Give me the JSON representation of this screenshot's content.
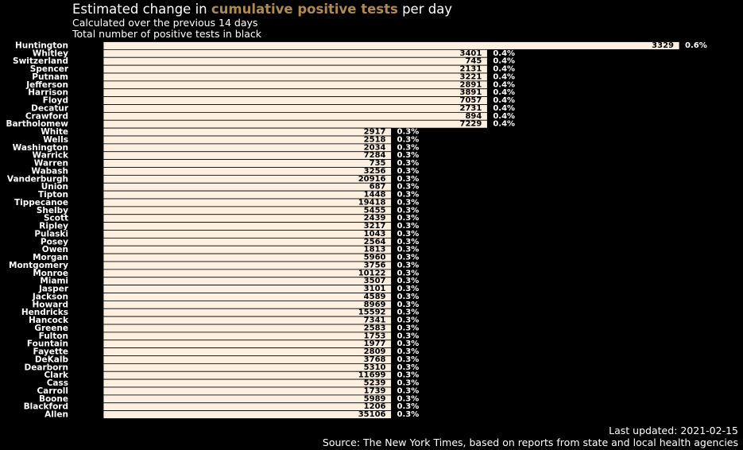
{
  "header": {
    "title_prefix": "Estimated change in ",
    "title_highlight": "cumulative positive tests",
    "title_suffix": " per day",
    "subtitle": "Calculated over the previous 14 days",
    "subtitle2": "Total number of positive tests in black"
  },
  "footer": {
    "updated": "Last updated: 2021-02-15",
    "source": "Source: The New York Times, based on reports from state and local health agencies"
  },
  "colors": {
    "background": "#000000",
    "bar": "#fdf0e1",
    "highlight": "#b08a4f",
    "text": "#ffffff",
    "value_text": "#000000"
  },
  "chart_data": {
    "type": "bar",
    "orientation": "horizontal",
    "x_unit": "percent",
    "xlim": [
      0,
      0.6
    ],
    "grid": false,
    "categories": [
      "Huntington",
      "Whitley",
      "Switzerland",
      "Spencer",
      "Putnam",
      "Jefferson",
      "Harrison",
      "Floyd",
      "Decatur",
      "Crawford",
      "Bartholomew",
      "White",
      "Wells",
      "Washington",
      "Warrick",
      "Warren",
      "Wabash",
      "Vanderburgh",
      "Union",
      "Tipton",
      "Tippecanoe",
      "Shelby",
      "Scott",
      "Ripley",
      "Pulaski",
      "Posey",
      "Owen",
      "Morgan",
      "Montgomery",
      "Monroe",
      "Miami",
      "Jasper",
      "Jackson",
      "Howard",
      "Hendricks",
      "Hancock",
      "Greene",
      "Fulton",
      "Fountain",
      "Fayette",
      "DeKalb",
      "Dearborn",
      "Clark",
      "Cass",
      "Carroll",
      "Boone",
      "Blackford",
      "Allen"
    ],
    "values": [
      0.6,
      0.4,
      0.4,
      0.4,
      0.4,
      0.4,
      0.4,
      0.4,
      0.4,
      0.4,
      0.4,
      0.3,
      0.3,
      0.3,
      0.3,
      0.3,
      0.3,
      0.3,
      0.3,
      0.3,
      0.3,
      0.3,
      0.3,
      0.3,
      0.3,
      0.3,
      0.3,
      0.3,
      0.3,
      0.3,
      0.3,
      0.3,
      0.3,
      0.3,
      0.3,
      0.3,
      0.3,
      0.3,
      0.3,
      0.3,
      0.3,
      0.3,
      0.3,
      0.3,
      0.3,
      0.3,
      0.3,
      0.3
    ],
    "value_labels": [
      "0.6%",
      "0.4%",
      "0.4%",
      "0.4%",
      "0.4%",
      "0.4%",
      "0.4%",
      "0.4%",
      "0.4%",
      "0.4%",
      "0.4%",
      "0.3%",
      "0.3%",
      "0.3%",
      "0.3%",
      "0.3%",
      "0.3%",
      "0.3%",
      "0.3%",
      "0.3%",
      "0.3%",
      "0.3%",
      "0.3%",
      "0.3%",
      "0.3%",
      "0.3%",
      "0.3%",
      "0.3%",
      "0.3%",
      "0.3%",
      "0.3%",
      "0.3%",
      "0.3%",
      "0.3%",
      "0.3%",
      "0.3%",
      "0.3%",
      "0.3%",
      "0.3%",
      "0.3%",
      "0.3%",
      "0.3%",
      "0.3%",
      "0.3%",
      "0.3%",
      "0.3%",
      "0.3%",
      "0.3%"
    ],
    "totals": [
      "3329",
      "3401",
      "745",
      "2131",
      "3221",
      "2891",
      "3891",
      "7057",
      "2731",
      "894",
      "7229",
      "2917",
      "2518",
      "2034",
      "7284",
      "735",
      "3256",
      "20916",
      "687",
      "1448",
      "19418",
      "5455",
      "2439",
      "3217",
      "1043",
      "2564",
      "1813",
      "5960",
      "3756",
      "10122",
      "3507",
      "3101",
      "4589",
      "8969",
      "15592",
      "7341",
      "2583",
      "1753",
      "1977",
      "2809",
      "3768",
      "5310",
      "11699",
      "5239",
      "1739",
      "5989",
      "1206",
      "35106"
    ]
  }
}
